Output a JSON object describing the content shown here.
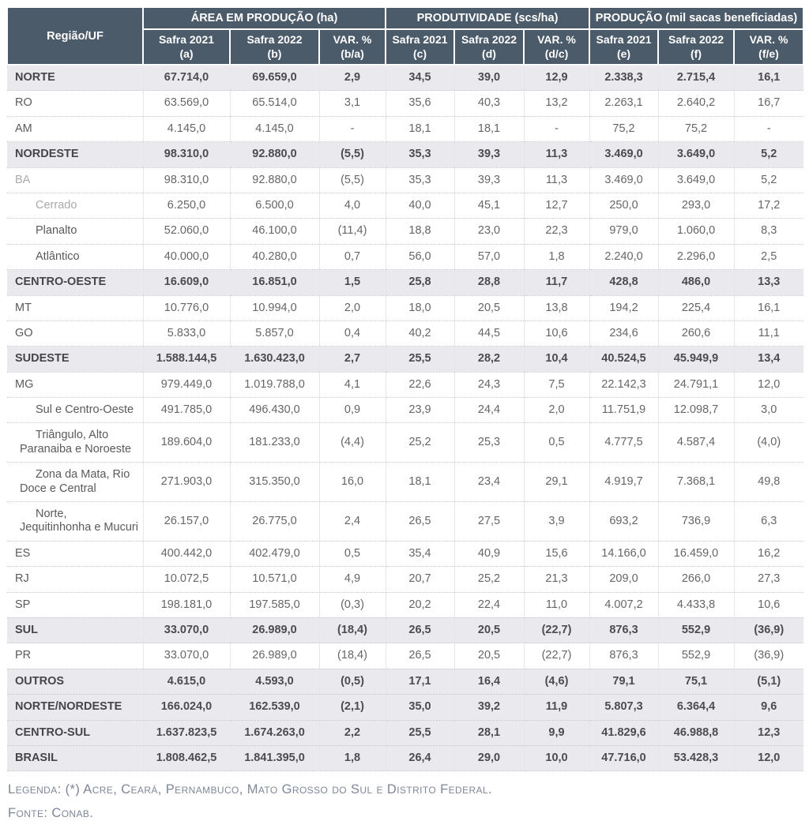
{
  "colors": {
    "header_bg": "#4b5b6a",
    "header_text": "#ffffff",
    "region_row_bg": "#e9e9ee",
    "row_divider": "#c8c8ce",
    "footer_text": "#7d8799"
  },
  "header": {
    "region_col": "Região/UF",
    "groups": [
      {
        "label": "ÁREA EM PRODUÇÃO (ha)",
        "cols": [
          {
            "title": "Safra 2021",
            "sub": "(a)"
          },
          {
            "title": "Safra 2022",
            "sub": "(b)"
          },
          {
            "title": "VAR. %",
            "sub": "(b/a)"
          }
        ]
      },
      {
        "label": "PRODUTIVIDADE (scs/ha)",
        "cols": [
          {
            "title": "Safra 2021",
            "sub": "(c)"
          },
          {
            "title": "Safra 2022",
            "sub": "(d)"
          },
          {
            "title": "VAR. %",
            "sub": "(d/c)"
          }
        ]
      },
      {
        "label": "PRODUÇÃO (mil sacas beneficiadas)",
        "cols": [
          {
            "title": "Safra 2021",
            "sub": "(e)"
          },
          {
            "title": "Safra 2022",
            "sub": "(f)"
          },
          {
            "title": "VAR. %",
            "sub": "(f/e)"
          }
        ]
      }
    ]
  },
  "rows": [
    {
      "label": "NORTE",
      "type": "region",
      "muted": false,
      "values": [
        "67.714,0",
        "69.659,0",
        "2,9",
        "34,5",
        "39,0",
        "12,9",
        "2.338,3",
        "2.715,4",
        "16,1"
      ]
    },
    {
      "label": "RO",
      "type": "uf",
      "muted": false,
      "values": [
        "63.569,0",
        "65.514,0",
        "3,1",
        "35,6",
        "40,3",
        "13,2",
        "2.263,1",
        "2.640,2",
        "16,7"
      ]
    },
    {
      "label": "AM",
      "type": "uf",
      "muted": false,
      "values": [
        "4.145,0",
        "4.145,0",
        "-",
        "18,1",
        "18,1",
        "-",
        "75,2",
        "75,2",
        "-"
      ]
    },
    {
      "label": "NORDESTE",
      "type": "region",
      "muted": false,
      "values": [
        "98.310,0",
        "92.880,0",
        "(5,5)",
        "35,3",
        "39,3",
        "11,3",
        "3.469,0",
        "3.649,0",
        "5,2"
      ]
    },
    {
      "label": "BA",
      "type": "uf",
      "muted": true,
      "values": [
        "98.310,0",
        "92.880,0",
        "(5,5)",
        "35,3",
        "39,3",
        "11,3",
        "3.469,0",
        "3.649,0",
        "5,2"
      ]
    },
    {
      "label": "Cerrado",
      "type": "sub",
      "muted": true,
      "values": [
        "6.250,0",
        "6.500,0",
        "4,0",
        "40,0",
        "45,1",
        "12,7",
        "250,0",
        "293,0",
        "17,2"
      ]
    },
    {
      "label": "Planalto",
      "type": "sub",
      "muted": false,
      "values": [
        "52.060,0",
        "46.100,0",
        "(11,4)",
        "18,8",
        "23,0",
        "22,3",
        "979,0",
        "1.060,0",
        "8,3"
      ]
    },
    {
      "label": "Atlântico",
      "type": "sub",
      "muted": false,
      "values": [
        "40.000,0",
        "40.280,0",
        "0,7",
        "56,0",
        "57,0",
        "1,8",
        "2.240,0",
        "2.296,0",
        "2,5"
      ]
    },
    {
      "label": "CENTRO-OESTE",
      "type": "region",
      "muted": false,
      "values": [
        "16.609,0",
        "16.851,0",
        "1,5",
        "25,8",
        "28,8",
        "11,7",
        "428,8",
        "486,0",
        "13,3"
      ]
    },
    {
      "label": "MT",
      "type": "uf",
      "muted": false,
      "values": [
        "10.776,0",
        "10.994,0",
        "2,0",
        "18,0",
        "20,5",
        "13,8",
        "194,2",
        "225,4",
        "16,1"
      ]
    },
    {
      "label": "GO",
      "type": "uf",
      "muted": false,
      "values": [
        "5.833,0",
        "5.857,0",
        "0,4",
        "40,2",
        "44,5",
        "10,6",
        "234,6",
        "260,6",
        "11,1"
      ]
    },
    {
      "label": "SUDESTE",
      "type": "region",
      "muted": false,
      "values": [
        "1.588.144,5",
        "1.630.423,0",
        "2,7",
        "25,5",
        "28,2",
        "10,4",
        "40.524,5",
        "45.949,9",
        "13,4"
      ]
    },
    {
      "label": "MG",
      "type": "uf",
      "muted": false,
      "values": [
        "979.449,0",
        "1.019.788,0",
        "4,1",
        "22,6",
        "24,3",
        "7,5",
        "22.142,3",
        "24.791,1",
        "12,0"
      ]
    },
    {
      "label": "Sul e Centro-Oeste",
      "type": "sub",
      "muted": false,
      "values": [
        "491.785,0",
        "496.430,0",
        "0,9",
        "23,9",
        "24,4",
        "2,0",
        "11.751,9",
        "12.098,7",
        "3,0"
      ]
    },
    {
      "label": "Triângulo, Alto Paranaiba e Noroeste",
      "type": "sub",
      "muted": false,
      "values": [
        "189.604,0",
        "181.233,0",
        "(4,4)",
        "25,2",
        "25,3",
        "0,5",
        "4.777,5",
        "4.587,4",
        "(4,0)"
      ]
    },
    {
      "label": "Zona da Mata, Rio Doce e Central",
      "type": "sub",
      "muted": false,
      "values": [
        "271.903,0",
        "315.350,0",
        "16,0",
        "18,1",
        "23,4",
        "29,1",
        "4.919,7",
        "7.368,1",
        "49,8"
      ]
    },
    {
      "label": "Norte, Jequitinhonha e Mucuri",
      "type": "sub",
      "muted": false,
      "values": [
        "26.157,0",
        "26.775,0",
        "2,4",
        "26,5",
        "27,5",
        "3,9",
        "693,2",
        "736,9",
        "6,3"
      ]
    },
    {
      "label": "ES",
      "type": "uf",
      "muted": false,
      "values": [
        "400.442,0",
        "402.479,0",
        "0,5",
        "35,4",
        "40,9",
        "15,6",
        "14.166,0",
        "16.459,0",
        "16,2"
      ]
    },
    {
      "label": "RJ",
      "type": "uf",
      "muted": false,
      "values": [
        "10.072,5",
        "10.571,0",
        "4,9",
        "20,7",
        "25,2",
        "21,3",
        "209,0",
        "266,0",
        "27,3"
      ]
    },
    {
      "label": "SP",
      "type": "uf",
      "muted": false,
      "values": [
        "198.181,0",
        "197.585,0",
        "(0,3)",
        "20,2",
        "22,4",
        "11,0",
        "4.007,2",
        "4.433,8",
        "10,6"
      ]
    },
    {
      "label": "SUL",
      "type": "region",
      "muted": false,
      "values": [
        "33.070,0",
        "26.989,0",
        "(18,4)",
        "26,5",
        "20,5",
        "(22,7)",
        "876,3",
        "552,9",
        "(36,9)"
      ]
    },
    {
      "label": "PR",
      "type": "uf",
      "muted": false,
      "values": [
        "33.070,0",
        "26.989,0",
        "(18,4)",
        "26,5",
        "20,5",
        "(22,7)",
        "876,3",
        "552,9",
        "(36,9)"
      ]
    },
    {
      "label": "OUTROS",
      "type": "region",
      "muted": false,
      "values": [
        "4.615,0",
        "4.593,0",
        "(0,5)",
        "17,1",
        "16,4",
        "(4,6)",
        "79,1",
        "75,1",
        "(5,1)"
      ]
    },
    {
      "label": "NORTE/NORDESTE",
      "type": "region",
      "muted": false,
      "values": [
        "166.024,0",
        "162.539,0",
        "(2,1)",
        "35,0",
        "39,2",
        "11,9",
        "5.807,3",
        "6.364,4",
        "9,6"
      ]
    },
    {
      "label": "CENTRO-SUL",
      "type": "region",
      "muted": false,
      "values": [
        "1.637.823,5",
        "1.674.263,0",
        "2,2",
        "25,5",
        "28,1",
        "9,9",
        "41.829,6",
        "46.988,8",
        "12,3"
      ]
    },
    {
      "label": "BRASIL",
      "type": "region",
      "muted": false,
      "values": [
        "1.808.462,5",
        "1.841.395,0",
        "1,8",
        "26,4",
        "29,0",
        "10,0",
        "47.716,0",
        "53.428,3",
        "12,0"
      ]
    }
  ],
  "footer": {
    "legend": "Legenda: (*) Acre, Ceará, Pernambuco, Mato Grosso do Sul e Distrito Federal.",
    "source": "Fonte: Conab."
  }
}
